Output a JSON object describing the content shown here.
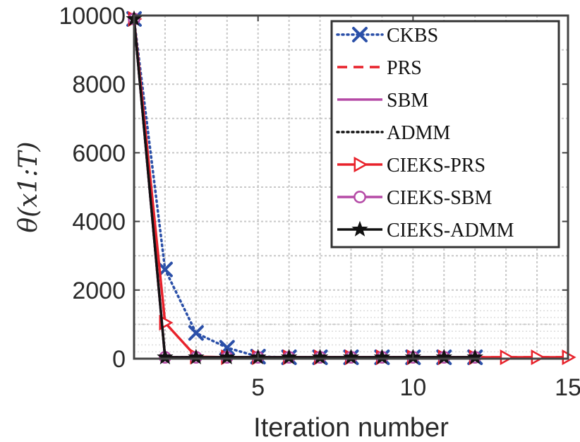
{
  "chart_data": {
    "type": "line",
    "xlabel": "Iteration number",
    "ylabel": "θ(x1:T)",
    "xlim": [
      1,
      15
    ],
    "ylim": [
      0,
      10000
    ],
    "xticks": [
      5,
      10,
      15
    ],
    "yticks": [
      0,
      2000,
      4000,
      6000,
      8000,
      10000
    ],
    "grid": true,
    "legend_position": "top-right",
    "series": [
      {
        "name": "CKBS",
        "color": "#2a4fa8",
        "dash": "dotted",
        "marker": "x",
        "x": [
          1,
          2,
          3,
          4,
          5,
          6,
          7,
          8,
          9,
          10,
          11,
          12
        ],
        "y": [
          9900,
          2600,
          750,
          320,
          60,
          40,
          40,
          40,
          40,
          40,
          40,
          40
        ]
      },
      {
        "name": "PRS",
        "color": "#e8222b",
        "dash": "dashed",
        "marker": "none",
        "x": [
          1,
          2,
          3,
          4,
          5,
          6,
          7,
          8,
          9,
          10,
          11,
          12,
          13,
          14,
          15
        ],
        "y": [
          9900,
          40,
          40,
          40,
          40,
          40,
          40,
          40,
          40,
          40,
          40,
          40,
          40,
          40,
          40
        ]
      },
      {
        "name": "SBM",
        "color": "#b54aa6",
        "dash": "solid",
        "marker": "none",
        "x": [
          1,
          2,
          3,
          4,
          5,
          6,
          7,
          8,
          9,
          10,
          11,
          12
        ],
        "y": [
          9900,
          40,
          40,
          40,
          40,
          40,
          40,
          40,
          40,
          40,
          40,
          40
        ]
      },
      {
        "name": "ADMM",
        "color": "#111111",
        "dash": "dotted",
        "marker": "none",
        "x": [
          1,
          2,
          3,
          4,
          5,
          6,
          7,
          8,
          9,
          10,
          11,
          12
        ],
        "y": [
          9900,
          40,
          40,
          40,
          40,
          40,
          40,
          40,
          40,
          40,
          40,
          40
        ]
      },
      {
        "name": "CIEKS-PRS",
        "color": "#e8222b",
        "dash": "solid",
        "marker": "triangle-right",
        "x": [
          1,
          2,
          3,
          4,
          5,
          6,
          7,
          8,
          9,
          10,
          11,
          12,
          13,
          14,
          15
        ],
        "y": [
          9900,
          1050,
          60,
          40,
          40,
          40,
          40,
          40,
          40,
          40,
          40,
          40,
          40,
          40,
          40
        ]
      },
      {
        "name": "CIEKS-SBM",
        "color": "#b54aa6",
        "dash": "solid",
        "marker": "circle",
        "x": [
          1,
          2,
          3,
          4,
          5,
          6,
          7,
          8,
          9,
          10,
          11,
          12
        ],
        "y": [
          9900,
          40,
          40,
          40,
          40,
          40,
          40,
          40,
          40,
          40,
          40,
          40
        ]
      },
      {
        "name": "CIEKS-ADMM",
        "color": "#111111",
        "dash": "solid",
        "marker": "star",
        "x": [
          1,
          2,
          3,
          4,
          5,
          6,
          7,
          8,
          9,
          10,
          11,
          12
        ],
        "y": [
          9900,
          40,
          40,
          40,
          40,
          40,
          40,
          40,
          40,
          40,
          40,
          40
        ]
      }
    ]
  }
}
